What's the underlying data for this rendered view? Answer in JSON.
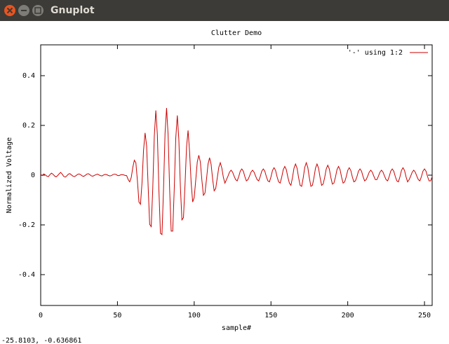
{
  "window": {
    "title": "Gnuplot"
  },
  "status": "-25.8103, -0.636861",
  "chart_data": {
    "type": "line",
    "title": "Clutter Demo",
    "x_label": "sample#",
    "y_label": "Normalized Voltage",
    "x": [
      0,
      1,
      2,
      3,
      4,
      5,
      6,
      7,
      8,
      9,
      10,
      11,
      12,
      13,
      14,
      15,
      16,
      17,
      18,
      19,
      20,
      21,
      22,
      23,
      24,
      25,
      26,
      27,
      28,
      29,
      30,
      31,
      32,
      33,
      34,
      35,
      36,
      37,
      38,
      39,
      40,
      41,
      42,
      43,
      44,
      45,
      46,
      47,
      48,
      49,
      50,
      51,
      52,
      53,
      54,
      55,
      56,
      57,
      58,
      59,
      60,
      61,
      62,
      63,
      64,
      65,
      66,
      67,
      68,
      69,
      70,
      71,
      72,
      73,
      74,
      75,
      76,
      77,
      78,
      79,
      80,
      81,
      82,
      83,
      84,
      85,
      86,
      87,
      88,
      89,
      90,
      91,
      92,
      93,
      94,
      95,
      96,
      97,
      98,
      99,
      100,
      101,
      102,
      103,
      104,
      105,
      106,
      107,
      108,
      109,
      110,
      111,
      112,
      113,
      114,
      115,
      116,
      117,
      118,
      119,
      120,
      121,
      122,
      123,
      124,
      125,
      126,
      127,
      128,
      129,
      130,
      131,
      132,
      133,
      134,
      135,
      136,
      137,
      138,
      139,
      140,
      141,
      142,
      143,
      144,
      145,
      146,
      147,
      148,
      149,
      150,
      151,
      152,
      153,
      154,
      155,
      156,
      157,
      158,
      159,
      160,
      161,
      162,
      163,
      164,
      165,
      166,
      167,
      168,
      169,
      170,
      171,
      172,
      173,
      174,
      175,
      176,
      177,
      178,
      179,
      180,
      181,
      182,
      183,
      184,
      185,
      186,
      187,
      188,
      189,
      190,
      191,
      192,
      193,
      194,
      195,
      196,
      197,
      198,
      199,
      200,
      201,
      202,
      203,
      204,
      205,
      206,
      207,
      208,
      209,
      210,
      211,
      212,
      213,
      214,
      215,
      216,
      217,
      218,
      219,
      220,
      221,
      222,
      223,
      224,
      225,
      226,
      227,
      228,
      229,
      230,
      231,
      232,
      233,
      234,
      235,
      236,
      237,
      238,
      239,
      240,
      241,
      242,
      243,
      244,
      245,
      246,
      247,
      248,
      249,
      250,
      251,
      252,
      253,
      254,
      255
    ],
    "series": [
      {
        "name": "'-' using 1:2",
        "color": "#cc0000",
        "values": [
          0.003,
          -0.002,
          0.005,
          0.001,
          -0.004,
          -0.006,
          0.002,
          0.008,
          0.004,
          -0.003,
          -0.007,
          -0.002,
          0.005,
          0.011,
          0.004,
          -0.005,
          -0.008,
          -0.003,
          0.004,
          0.006,
          0.001,
          -0.004,
          -0.006,
          -0.002,
          0.003,
          0.005,
          0.002,
          -0.003,
          -0.005,
          -0.001,
          0.004,
          0.006,
          0.002,
          -0.003,
          -0.004,
          -0.001,
          0.002,
          0.004,
          0.001,
          -0.002,
          -0.003,
          0.001,
          0.003,
          0.002,
          -0.001,
          -0.003,
          -0.002,
          0.002,
          0.004,
          0.003,
          -0.001,
          -0.002,
          0.001,
          0.002,
          0.001,
          -0.001,
          -0.002,
          -0.018,
          -0.027,
          -0.009,
          0.031,
          0.06,
          0.05,
          -0.022,
          -0.108,
          -0.117,
          -0.031,
          0.1,
          0.17,
          0.118,
          -0.047,
          -0.198,
          -0.207,
          -0.054,
          0.156,
          0.26,
          0.162,
          -0.058,
          -0.234,
          -0.239,
          -0.06,
          0.168,
          0.27,
          0.162,
          -0.057,
          -0.225,
          -0.225,
          -0.055,
          0.15,
          0.24,
          0.143,
          -0.047,
          -0.18,
          -0.171,
          -0.041,
          0.112,
          0.18,
          0.093,
          -0.029,
          -0.108,
          -0.09,
          -0.02,
          0.053,
          0.08,
          0.053,
          -0.02,
          -0.081,
          -0.072,
          -0.017,
          0.044,
          0.07,
          0.044,
          -0.016,
          -0.063,
          -0.054,
          -0.012,
          0.031,
          0.05,
          0.028,
          -0.009,
          -0.032,
          -0.018,
          -0.004,
          0.012,
          0.02,
          0.012,
          -0.004,
          -0.018,
          -0.023,
          -0.006,
          0.016,
          0.025,
          0.016,
          -0.006,
          -0.023,
          -0.018,
          -0.004,
          0.012,
          0.02,
          0.012,
          -0.004,
          -0.018,
          -0.023,
          -0.006,
          0.016,
          0.025,
          0.016,
          -0.006,
          -0.023,
          -0.027,
          -0.007,
          0.019,
          0.03,
          0.019,
          -0.007,
          -0.027,
          -0.032,
          -0.008,
          0.022,
          0.035,
          0.022,
          -0.008,
          -0.032,
          -0.041,
          -0.01,
          0.028,
          0.045,
          0.028,
          -0.01,
          -0.041,
          -0.045,
          -0.011,
          0.031,
          0.05,
          0.031,
          -0.011,
          -0.045,
          -0.041,
          -0.01,
          0.028,
          0.045,
          0.028,
          -0.01,
          -0.041,
          -0.036,
          -0.009,
          0.025,
          0.04,
          0.025,
          -0.009,
          -0.036,
          -0.032,
          -0.008,
          0.022,
          0.035,
          0.022,
          -0.008,
          -0.032,
          -0.027,
          -0.007,
          0.019,
          0.03,
          0.019,
          -0.007,
          -0.027,
          -0.023,
          -0.006,
          0.016,
          0.025,
          0.016,
          -0.006,
          -0.023,
          -0.018,
          -0.004,
          0.012,
          0.02,
          0.012,
          -0.004,
          -0.018,
          -0.018,
          -0.004,
          0.012,
          0.02,
          0.012,
          -0.004,
          -0.018,
          -0.023,
          -0.006,
          0.016,
          0.025,
          0.016,
          -0.006,
          -0.023,
          -0.027,
          -0.007,
          0.019,
          0.03,
          0.019,
          -0.007,
          -0.027,
          -0.018,
          -0.004,
          0.012,
          0.02,
          0.012,
          -0.004,
          -0.018,
          -0.023,
          -0.006,
          0.016,
          0.025,
          0.016,
          -0.006,
          -0.023,
          -0.023,
          -0.006
        ]
      }
    ],
    "xlim": [
      0,
      255
    ],
    "ylim": [
      -0.524,
      0.524
    ],
    "xticks": [
      0,
      50,
      100,
      150,
      200,
      250
    ],
    "yticks": [
      -0.4,
      -0.2,
      0,
      0.2,
      0.4
    ],
    "legend": "top-right",
    "grid": false
  }
}
